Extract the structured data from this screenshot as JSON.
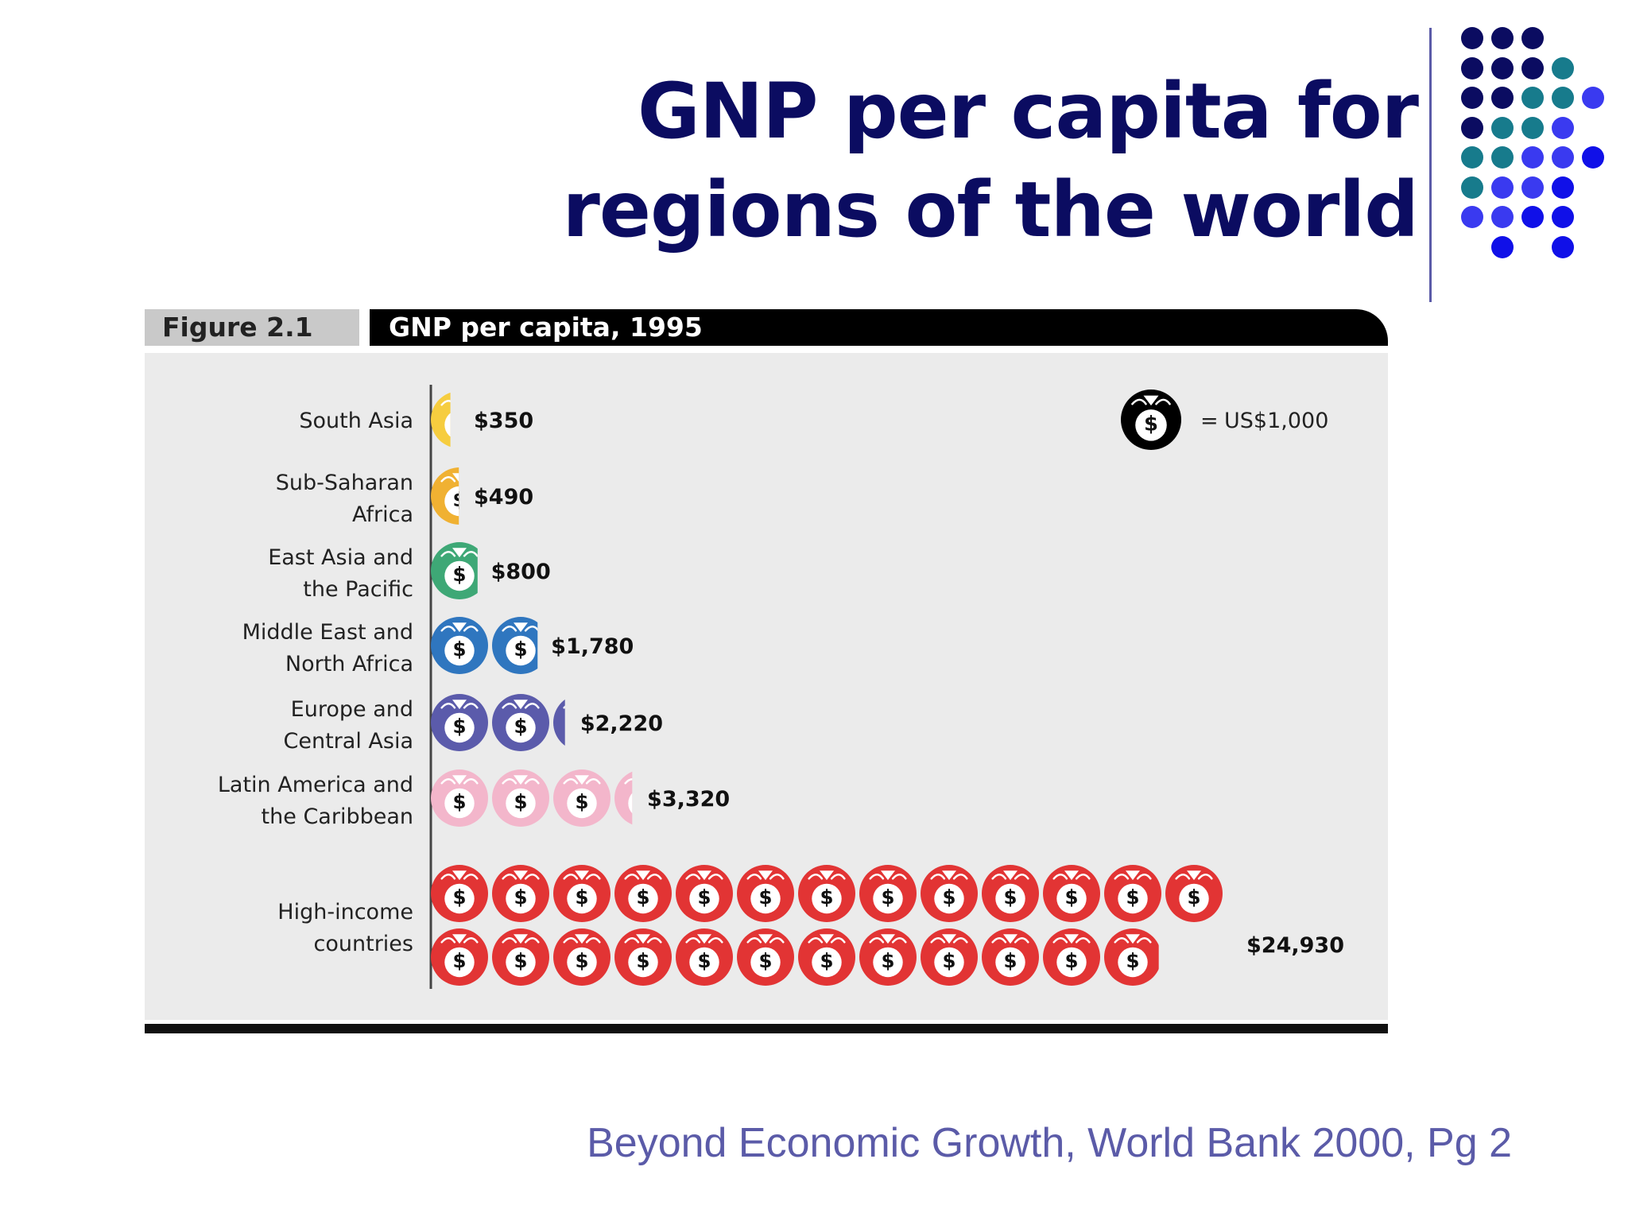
{
  "slide": {
    "title_lines": [
      "GNP per capita for",
      "regions of the world"
    ],
    "source": "Beyond Economic Growth, World Bank 2000, Pg 2"
  },
  "decor": {
    "dot_colors": [
      "#0b0c61",
      "#177b8c",
      "#3a3af0",
      "#1010e8"
    ]
  },
  "figure": {
    "label": "Figure 2.1",
    "title": "GNP per capita, 1995",
    "legend": {
      "icon": "money-bag-icon",
      "equals": "=",
      "text": "US$1,000",
      "unit_value": 1000
    }
  },
  "chart_data": {
    "type": "bar",
    "title": "GNP per capita, 1995",
    "unit": "US$",
    "icon_value": 1000,
    "categories": [
      [
        "South Asia"
      ],
      [
        "Sub-Saharan",
        "Africa"
      ],
      [
        "East Asia and",
        "the Pacific"
      ],
      [
        "Middle East and",
        "North Africa"
      ],
      [
        "Europe and",
        "Central Asia"
      ],
      [
        "Latin America and",
        "the Caribbean"
      ],
      [
        "High-income",
        "countries"
      ]
    ],
    "values": [
      350,
      490,
      800,
      1780,
      2220,
      3320,
      24930
    ],
    "value_labels": [
      "$350",
      "$490",
      "$800",
      "$1,780",
      "$2,220",
      "$3,320",
      "$24,930"
    ],
    "colors": [
      "#f6cd3f",
      "#f0b132",
      "#3ea876",
      "#2f76bf",
      "#5b5bab",
      "#f3b6cb",
      "#e23434"
    ]
  }
}
